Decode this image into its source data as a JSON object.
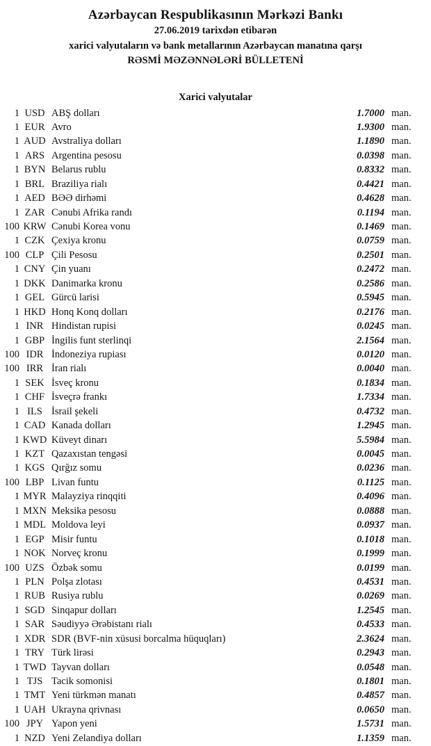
{
  "header": {
    "title": "Azərbaycan Respublikasının Mərkəzi Bankı",
    "date_line": "27.06.2019 tarixdən etibarən",
    "subject_line": "xarici valyutaların və bank metallarının Azərbaycan manatına qarşı",
    "bulletin_line": "RƏSMİ MƏZƏNNƏLƏRİ BÜLLETENİ"
  },
  "section": {
    "title": "Xarici valyutalar"
  },
  "unit_label": "man.",
  "rates": [
    {
      "qty": "1",
      "code": "USD",
      "name": "ABŞ dolları",
      "rate": "1.7000"
    },
    {
      "qty": "1",
      "code": "EUR",
      "name": "Avro",
      "rate": "1.9300"
    },
    {
      "qty": "1",
      "code": "AUD",
      "name": "Avstraliya dolları",
      "rate": "1.1890"
    },
    {
      "qty": "1",
      "code": "ARS",
      "name": "Argentina pesosu",
      "rate": "0.0398"
    },
    {
      "qty": "1",
      "code": "BYN",
      "name": "Belarus rublu",
      "rate": "0.8332"
    },
    {
      "qty": "1",
      "code": "BRL",
      "name": "Braziliya rialı",
      "rate": "0.4421"
    },
    {
      "qty": "1",
      "code": "AED",
      "name": "BƏƏ dirhəmi",
      "rate": "0.4628"
    },
    {
      "qty": "1",
      "code": "ZAR",
      "name": "Cənubi Afrika randı",
      "rate": "0.1194"
    },
    {
      "qty": "100",
      "code": "KRW",
      "name": "Cənubi Korea vonu",
      "rate": "0.1469"
    },
    {
      "qty": "1",
      "code": "CZK",
      "name": "Çexiya kronu",
      "rate": "0.0759"
    },
    {
      "qty": "100",
      "code": "CLP",
      "name": "Çili Pesosu",
      "rate": "0.2501"
    },
    {
      "qty": "1",
      "code": "CNY",
      "name": "Çin yuanı",
      "rate": "0.2472"
    },
    {
      "qty": "1",
      "code": "DKK",
      "name": "Danimarka kronu",
      "rate": "0.2586"
    },
    {
      "qty": "1",
      "code": "GEL",
      "name": "Gürcü larisi",
      "rate": "0.5945"
    },
    {
      "qty": "1",
      "code": "HKD",
      "name": "Honq Konq dolları",
      "rate": "0.2176"
    },
    {
      "qty": "1",
      "code": "INR",
      "name": "Hindistan rupisi",
      "rate": "0.0245"
    },
    {
      "qty": "1",
      "code": "GBP",
      "name": "İngilis funt sterlinqi",
      "rate": "2.1564"
    },
    {
      "qty": "100",
      "code": "IDR",
      "name": "İndoneziya rupiası",
      "rate": "0.0120"
    },
    {
      "qty": "100",
      "code": "IRR",
      "name": "İran rialı",
      "rate": "0.0040"
    },
    {
      "qty": "1",
      "code": "SEK",
      "name": "İsveç kronu",
      "rate": "0.1834"
    },
    {
      "qty": "1",
      "code": "CHF",
      "name": "İsveçrə frankı",
      "rate": "1.7334"
    },
    {
      "qty": "1",
      "code": "ILS",
      "name": "İsrail şekeli",
      "rate": "0.4732"
    },
    {
      "qty": "1",
      "code": "CAD",
      "name": "Kanada dolları",
      "rate": "1.2945"
    },
    {
      "qty": "1",
      "code": "KWD",
      "name": "Küveyt dinarı",
      "rate": "5.5984"
    },
    {
      "qty": "1",
      "code": "KZT",
      "name": "Qazaxıstan tengəsi",
      "rate": "0.0045"
    },
    {
      "qty": "1",
      "code": "KGS",
      "name": "Qırğız somu",
      "rate": "0.0236"
    },
    {
      "qty": "100",
      "code": "LBP",
      "name": "Livan funtu",
      "rate": "0.1125"
    },
    {
      "qty": "1",
      "code": "MYR",
      "name": "Malayziya rinqqiti",
      "rate": "0.4096"
    },
    {
      "qty": "1",
      "code": "MXN",
      "name": "Meksika pesosu",
      "rate": "0.0888"
    },
    {
      "qty": "1",
      "code": "MDL",
      "name": "Moldova leyi",
      "rate": "0.0937"
    },
    {
      "qty": "1",
      "code": "EGP",
      "name": "Misir funtu",
      "rate": "0.1018"
    },
    {
      "qty": "1",
      "code": "NOK",
      "name": "Norveç kronu",
      "rate": "0.1999"
    },
    {
      "qty": "100",
      "code": "UZS",
      "name": "Özbək somu",
      "rate": "0.0199"
    },
    {
      "qty": "1",
      "code": "PLN",
      "name": "Polşa zlotası",
      "rate": "0.4531"
    },
    {
      "qty": "1",
      "code": "RUB",
      "name": "Rusiya rublu",
      "rate": "0.0269"
    },
    {
      "qty": "1",
      "code": "SGD",
      "name": "Sinqapur dolları",
      "rate": "1.2545"
    },
    {
      "qty": "1",
      "code": "SAR",
      "name": "Səudiyyə Ərəbistanı rialı",
      "rate": "0.4533"
    },
    {
      "qty": "1",
      "code": "XDR",
      "name": "SDR (BVF-nin xüsusi borcalma hüquqları)",
      "rate": "2.3624"
    },
    {
      "qty": "1",
      "code": "TRY",
      "name": "Türk lirəsi",
      "rate": "0.2943"
    },
    {
      "qty": "1",
      "code": "TWD",
      "name": "Tayvan dolları",
      "rate": "0.0548"
    },
    {
      "qty": "1",
      "code": "TJS",
      "name": "Tacik somonisi",
      "rate": "0.1801"
    },
    {
      "qty": "1",
      "code": "TMT",
      "name": "Yeni türkmən manatı",
      "rate": "0.4857"
    },
    {
      "qty": "1",
      "code": "UAH",
      "name": "Ukrayna qrivnası",
      "rate": "0.0650"
    },
    {
      "qty": "100",
      "code": "JPY",
      "name": "Yapon yeni",
      "rate": "1.5731"
    },
    {
      "qty": "1",
      "code": "NZD",
      "name": "Yeni Zelandiya dolları",
      "rate": "1.1359"
    }
  ]
}
